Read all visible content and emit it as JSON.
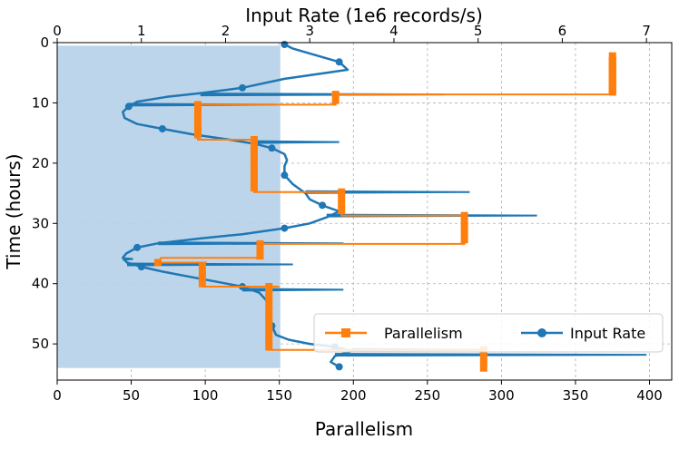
{
  "chart_data": {
    "type": "line",
    "orientation": "time on vertical axis (inverted, 0 at top)",
    "ylabel": "Time (hours)",
    "xlabel_bottom": "Parallelism",
    "xlabel_top": "Input Rate (1e6 records/s)",
    "ylim": [
      56,
      0
    ],
    "xlim_bottom": [
      0,
      415
    ],
    "xlim_top": [
      0,
      7.3
    ],
    "yticks": [
      0,
      10,
      20,
      30,
      40,
      50
    ],
    "xticks_bottom": [
      0,
      50,
      100,
      150,
      200,
      250,
      300,
      350,
      400
    ],
    "xticks_top": [
      0,
      1,
      2,
      3,
      4,
      5,
      6,
      7
    ],
    "grid": true,
    "legend_position": "lower-right",
    "colors": {
      "parallelism": "#ff7f0e",
      "input_rate": "#1f77b4",
      "fill": "#b9d3e9"
    },
    "shaded_region": {
      "x_to": 2.65,
      "y_from": 0.5,
      "y_to": 54.0,
      "units": "input rate"
    },
    "series": [
      {
        "name": "Parallelism",
        "axis": "bottom",
        "marker": "square",
        "points": [
          [
            375,
            2.2
          ],
          [
            375,
            8.6
          ],
          [
            260,
            8.6
          ],
          [
            375,
            8.6
          ],
          [
            375,
            3.0
          ],
          [
            375,
            8.6
          ],
          [
            375,
            8.6
          ],
          [
            185,
            8.6
          ],
          [
            188,
            8.6
          ],
          [
            188,
            10.3
          ],
          [
            95,
            10.3
          ],
          [
            95,
            16.1
          ],
          [
            125,
            16.1
          ],
          [
            133,
            16.1
          ],
          [
            133,
            24.8
          ],
          [
            190,
            24.8
          ],
          [
            192,
            24.8
          ],
          [
            192,
            28.7
          ],
          [
            272,
            28.7
          ],
          [
            275,
            28.7
          ],
          [
            275,
            33.4
          ],
          [
            200,
            33.4
          ],
          [
            137,
            33.4
          ],
          [
            137,
            35.7
          ],
          [
            70,
            35.7
          ],
          [
            68,
            37.0
          ],
          [
            68,
            36.5
          ],
          [
            100,
            36.5
          ],
          [
            98,
            37.0
          ],
          [
            98,
            40.5
          ],
          [
            150,
            40.5
          ],
          [
            143,
            40.5
          ],
          [
            143,
            51.0
          ],
          [
            190,
            51.0
          ],
          [
            288,
            51.0
          ],
          [
            288,
            54.0
          ]
        ]
      },
      {
        "name": "Input Rate",
        "axis": "top",
        "marker": "circle",
        "points": [
          [
            2.7,
            0.3
          ],
          [
            2.8,
            1.0
          ],
          [
            3.05,
            2.0
          ],
          [
            3.2,
            2.6
          ],
          [
            3.35,
            3.2
          ],
          [
            3.45,
            4.5
          ],
          [
            3.2,
            5.0
          ],
          [
            2.7,
            6.0
          ],
          [
            2.2,
            7.5
          ],
          [
            1.7,
            8.4
          ],
          [
            1.3,
            9.0
          ],
          [
            0.95,
            9.8
          ],
          [
            0.85,
            10.6
          ],
          [
            0.78,
            11.5
          ],
          [
            0.8,
            12.5
          ],
          [
            0.95,
            13.5
          ],
          [
            1.25,
            14.3
          ],
          [
            1.6,
            15.2
          ],
          [
            2.05,
            16.1
          ],
          [
            2.35,
            16.8
          ],
          [
            2.55,
            17.5
          ],
          [
            2.7,
            18.5
          ],
          [
            2.73,
            19.5
          ],
          [
            2.7,
            20.5
          ],
          [
            2.7,
            22.0
          ],
          [
            2.8,
            23.5
          ],
          [
            2.95,
            25.0
          ],
          [
            3.0,
            26.0
          ],
          [
            3.15,
            27.0
          ],
          [
            3.35,
            28.0
          ],
          [
            3.2,
            29.0
          ],
          [
            3.0,
            30.0
          ],
          [
            2.7,
            30.8
          ],
          [
            2.2,
            31.8
          ],
          [
            1.7,
            32.5
          ],
          [
            1.2,
            33.3
          ],
          [
            0.95,
            34.0
          ],
          [
            0.82,
            35.0
          ],
          [
            0.78,
            35.7
          ],
          [
            0.83,
            36.5
          ],
          [
            1.0,
            37.2
          ],
          [
            1.25,
            38.0
          ],
          [
            1.55,
            38.8
          ],
          [
            1.9,
            39.7
          ],
          [
            2.2,
            40.5
          ],
          [
            2.4,
            41.5
          ],
          [
            2.5,
            43.0
          ],
          [
            2.5,
            45.0
          ],
          [
            2.55,
            47.0
          ],
          [
            2.6,
            48.5
          ],
          [
            2.75,
            49.3
          ],
          [
            3.0,
            50.0
          ],
          [
            3.3,
            50.5
          ],
          [
            3.5,
            51.2
          ],
          [
            3.3,
            52.0
          ],
          [
            3.25,
            53.0
          ],
          [
            3.35,
            53.8
          ]
        ],
        "spikes": [
          [
            4.6,
            8.6
          ],
          [
            2.6,
            10.3
          ],
          [
            3.35,
            16.5
          ],
          [
            4.9,
            24.8
          ],
          [
            5.7,
            28.7
          ],
          [
            3.4,
            33.3
          ],
          [
            0.9,
            35.9
          ],
          [
            2.8,
            36.8
          ],
          [
            3.4,
            41.0
          ],
          [
            5.0,
            51.0
          ],
          [
            7.0,
            51.8
          ]
        ]
      }
    ]
  },
  "legend": {
    "parallelism_label": "Parallelism",
    "input_rate_label": "Input Rate"
  }
}
